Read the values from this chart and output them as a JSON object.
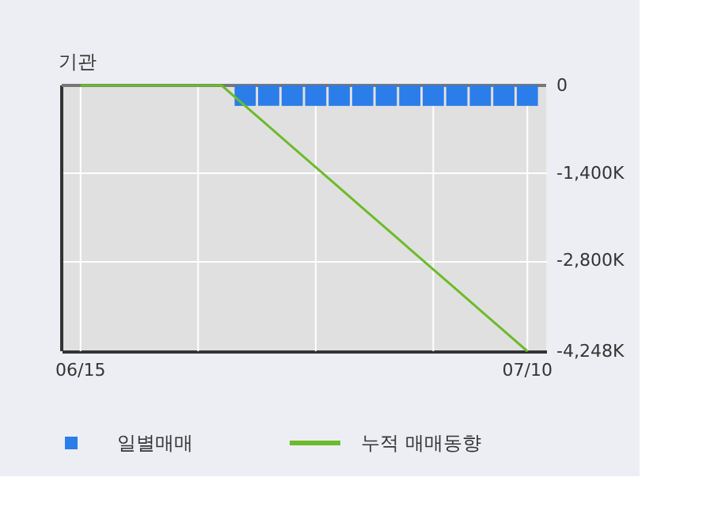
{
  "chart_data": {
    "type": "bar",
    "title": "기관",
    "categories": [
      "06/15",
      null,
      null,
      null,
      null,
      null,
      null,
      null,
      null,
      null,
      null,
      null,
      null,
      null,
      null,
      null,
      null,
      null,
      null,
      "07/10"
    ],
    "series": [
      {
        "name": "일별매매",
        "color": "#2b7de9",
        "values": [
          null,
          null,
          null,
          null,
          null,
          null,
          null,
          -327,
          -327,
          -327,
          -327,
          -327,
          -327,
          -327,
          -327,
          -327,
          -327,
          -327,
          -327,
          -327
        ]
      },
      {
        "name": "누적 매매동향",
        "type": "line",
        "color": "#6cbb2a",
        "values": [
          0,
          0,
          0,
          0,
          0,
          0,
          0,
          -327,
          -654,
          -980,
          -1307,
          -1634,
          -1961,
          -2288,
          -2614,
          -2941,
          -3268,
          -3595,
          -3922,
          -4248
        ]
      }
    ],
    "ylim": [
      -4248,
      0
    ],
    "yticks": [
      0,
      {
        "value": -1400,
        "label": "-1,400K"
      },
      {
        "value": -2800,
        "label": "-2,800K"
      },
      {
        "value": -4248,
        "label": "-4,248K"
      }
    ],
    "grid": true,
    "legend": "bottom"
  }
}
